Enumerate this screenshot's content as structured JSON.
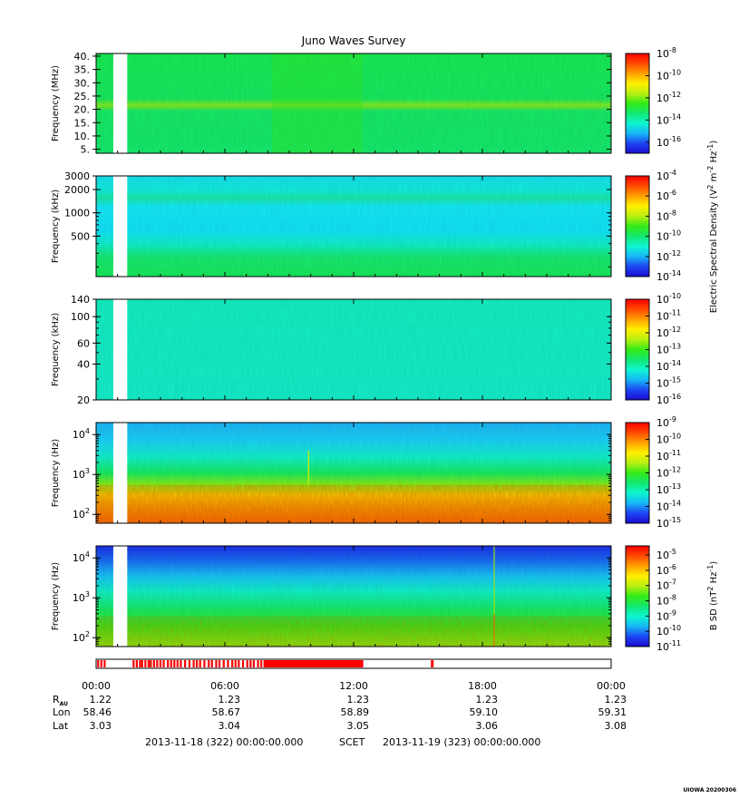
{
  "chart_data": {
    "type": "heatmap",
    "title": "Juno Waves Survey",
    "time_axis": {
      "tick_labels": [
        "00:00",
        "06:00",
        "12:00",
        "18:00",
        "00:00"
      ],
      "hours": [
        0,
        6,
        12,
        18,
        24
      ],
      "range_hours": [
        0,
        24
      ]
    },
    "ephemeris": {
      "rows": [
        {
          "label": "R",
          "sub": "AU",
          "values": [
            "1.22",
            "1.23",
            "1.23",
            "1.23",
            "1.23"
          ]
        },
        {
          "label": "Lon",
          "sub": "",
          "values": [
            "58.46",
            "58.67",
            "58.89",
            "59.10",
            "59.31"
          ]
        },
        {
          "label": "Lat",
          "sub": "",
          "values": [
            "3.03",
            "3.04",
            "3.05",
            "3.06",
            "3.08"
          ]
        }
      ]
    },
    "date_line": {
      "start": "2013-11-18 (322) 00:00:00.000",
      "scet": "SCET",
      "end": "2013-11-19 (323) 00:00:00.000"
    },
    "data_gap_hours": [
      0.8,
      1.45
    ],
    "panels": [
      {
        "ylabel": "Frequency (MHz)",
        "yscale": "linear",
        "ylim": [
          3.5,
          41
        ],
        "yticks": [
          {
            "v": 5,
            "t": "5."
          },
          {
            "v": 10,
            "t": "10."
          },
          {
            "v": 15,
            "t": "15."
          },
          {
            "v": 20,
            "t": "20."
          },
          {
            "v": 25,
            "t": "25."
          },
          {
            "v": 30,
            "t": "30."
          },
          {
            "v": 35,
            "t": "35."
          },
          {
            "v": 40,
            "t": "40."
          }
        ],
        "colorbar": {
          "exp_min": -17,
          "exp_max": -8,
          "labels": [
            -8,
            -10,
            -12,
            -14,
            -16
          ]
        }
      },
      {
        "ylabel": "Frequency (kHz)",
        "yscale": "log",
        "ylim": [
          150,
          3000
        ],
        "yticks": [
          {
            "v": 500,
            "t": "500"
          },
          {
            "v": 1000,
            "t": "1000"
          },
          {
            "v": 2000,
            "t": "2000"
          },
          {
            "v": 3000,
            "t": "3000"
          }
        ],
        "colorbar": {
          "exp_min": -14,
          "exp_max": -4,
          "labels": [
            -4,
            -6,
            -8,
            -10,
            -12,
            -14
          ]
        }
      },
      {
        "ylabel": "Frequency (kHz)",
        "yscale": "log",
        "ylim": [
          20,
          140
        ],
        "yticks": [
          {
            "v": 20,
            "t": "20"
          },
          {
            "v": 40,
            "t": "40"
          },
          {
            "v": 60,
            "t": "60"
          },
          {
            "v": 100,
            "t": "100"
          },
          {
            "v": 140,
            "t": "140"
          }
        ],
        "colorbar": {
          "exp_min": -16,
          "exp_max": -10,
          "labels": [
            -10,
            -11,
            -12,
            -13,
            -14,
            -15,
            -16
          ]
        }
      },
      {
        "ylabel": "Frequency (Hz)",
        "yscale": "log",
        "ylim": [
          60,
          20000
        ],
        "yticks": [
          {
            "v": 100,
            "t": "10",
            "exp": "2"
          },
          {
            "v": 1000,
            "t": "10",
            "exp": "3"
          },
          {
            "v": 10000,
            "t": "10",
            "exp": "4"
          }
        ],
        "colorbar": {
          "exp_min": -15,
          "exp_max": -9,
          "labels": [
            -9,
            -10,
            -11,
            -12,
            -13,
            -14,
            -15
          ]
        }
      },
      {
        "ylabel": "Frequency (Hz)",
        "yscale": "log",
        "ylim": [
          60,
          20000
        ],
        "yticks": [
          {
            "v": 100,
            "t": "10",
            "exp": "2"
          },
          {
            "v": 1000,
            "t": "10",
            "exp": "3"
          },
          {
            "v": 10000,
            "t": "10",
            "exp": "4"
          }
        ],
        "colorbar": {
          "exp_min": -11,
          "exp_max": -4.4,
          "labels": [
            -5,
            -6,
            -7,
            -8,
            -9,
            -10,
            -11
          ]
        }
      }
    ],
    "colorbar_titles": {
      "electric": "Electric Spectral Density (V2 m-2 Hz-1)",
      "magnetic": "B SD (nT2 Hz-1)"
    },
    "colorscale": [
      "#1a0ccf",
      "#1d47f4",
      "#16b7f5",
      "#0ff5d2",
      "#12e870",
      "#34ea16",
      "#b8ef12",
      "#fff000",
      "#ffa000",
      "#ff4a00",
      "#ff0000"
    ]
  },
  "footer": {
    "stamp": "UIOWA 20200306"
  }
}
